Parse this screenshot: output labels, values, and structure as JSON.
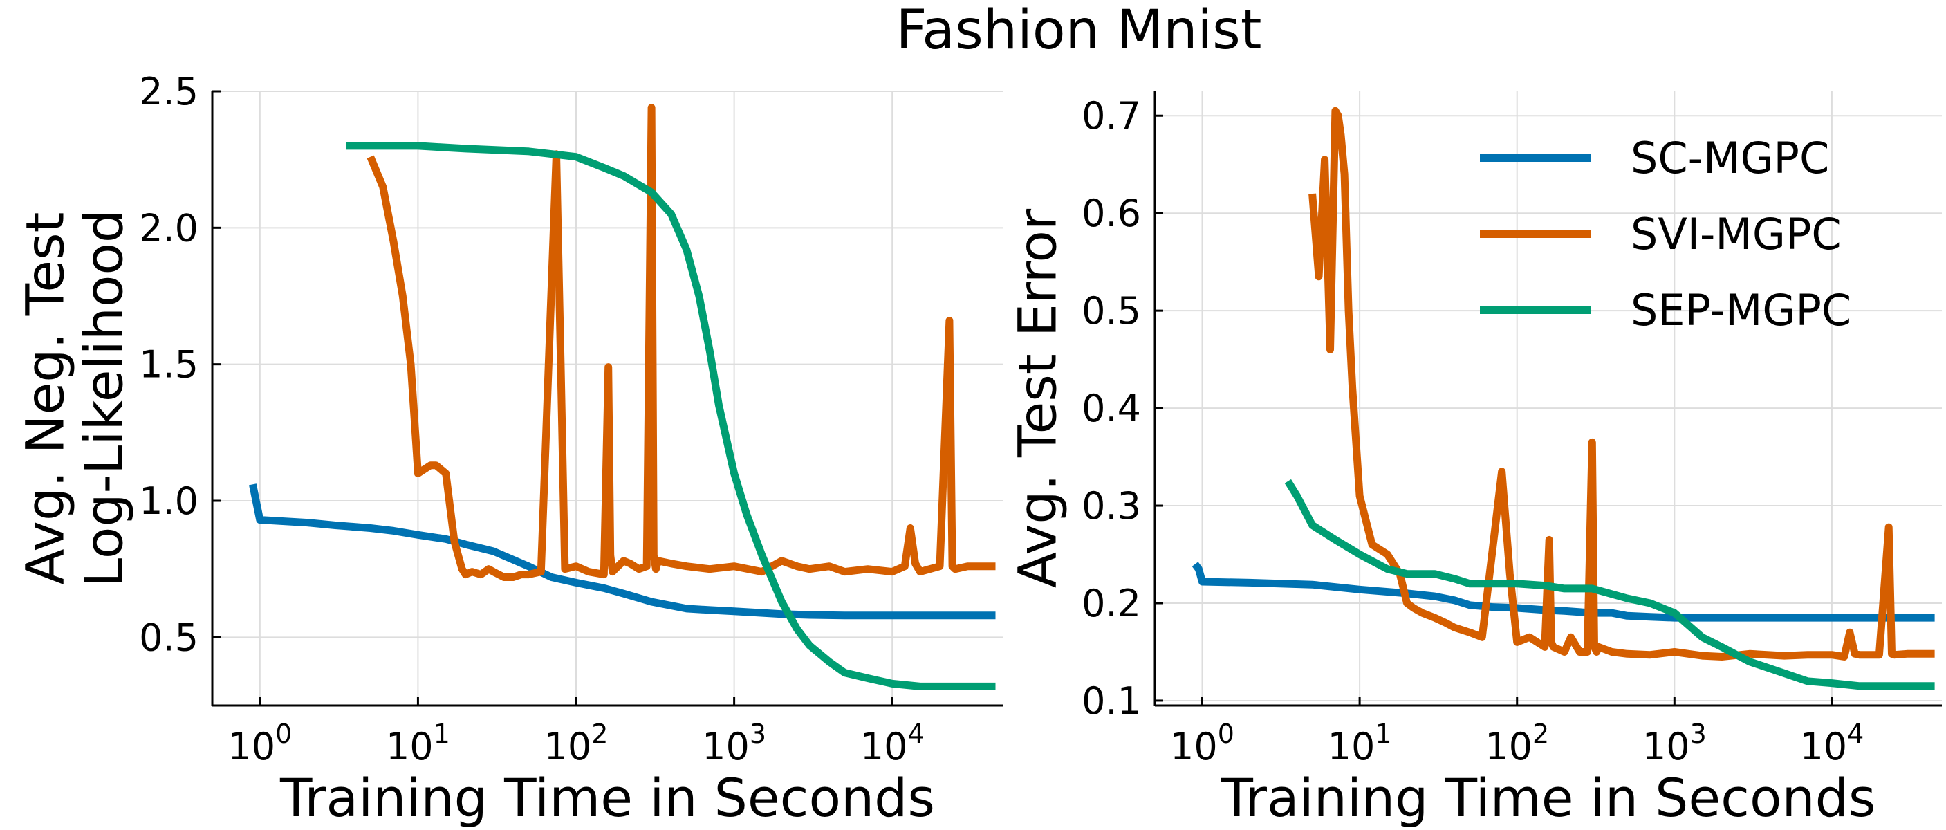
{
  "figure": {
    "title": "Fashion Mnist"
  },
  "chart_data": [
    {
      "type": "line",
      "xlabel": "Training Time in Seconds",
      "ylabel": [
        "Avg. Neg. Test",
        "Log-Likelihood"
      ],
      "xscale": "log",
      "xlim": [
        0.5,
        50000
      ],
      "ylim": [
        0.25,
        2.5
      ],
      "xticks": [
        {
          "value": 1,
          "base": "10",
          "exp": "0"
        },
        {
          "value": 10,
          "base": "10",
          "exp": "1"
        },
        {
          "value": 100,
          "base": "10",
          "exp": "2"
        },
        {
          "value": 1000,
          "base": "10",
          "exp": "3"
        },
        {
          "value": 10000,
          "base": "10",
          "exp": "4"
        }
      ],
      "yticks": [
        {
          "value": 0.5,
          "label": "0.5"
        },
        {
          "value": 1.0,
          "label": "1.0"
        },
        {
          "value": 1.5,
          "label": "1.5"
        },
        {
          "value": 2.0,
          "label": "2.0"
        },
        {
          "value": 2.5,
          "label": "2.5"
        }
      ],
      "grid": true,
      "series": [
        {
          "name": "SC-MGPC",
          "color": "#0072b2",
          "x": [
            0.9,
            1.0,
            2,
            3,
            5,
            7,
            10,
            15,
            20,
            30,
            50,
            70,
            100,
            150,
            200,
            300,
            500,
            700,
            1000,
            2000,
            3000,
            5000,
            10000,
            45000
          ],
          "y": [
            1.06,
            0.93,
            0.92,
            0.91,
            0.9,
            0.89,
            0.875,
            0.86,
            0.84,
            0.815,
            0.76,
            0.72,
            0.7,
            0.68,
            0.66,
            0.63,
            0.605,
            0.6,
            0.595,
            0.585,
            0.582,
            0.58,
            0.58,
            0.58
          ]
        },
        {
          "name": "SVI-MGPC",
          "color": "#d55e00",
          "x": [
            5,
            6,
            7,
            8,
            9,
            9.5,
            10,
            12,
            13,
            15,
            17,
            19,
            20,
            22,
            25,
            28,
            30,
            35,
            40,
            45,
            50,
            60,
            75,
            80,
            85,
            100,
            120,
            150,
            160,
            165,
            170,
            200,
            220,
            250,
            280,
            300,
            310,
            320,
            330,
            400,
            500,
            700,
            1000,
            1500,
            2000,
            2500,
            3000,
            4000,
            5000,
            7000,
            10000,
            12000,
            13000,
            14000,
            15000,
            20000,
            23000,
            24000,
            25000,
            30000,
            45000
          ],
          "y": [
            2.26,
            2.15,
            1.95,
            1.75,
            1.5,
            1.3,
            1.1,
            1.13,
            1.13,
            1.1,
            0.85,
            0.75,
            0.73,
            0.74,
            0.73,
            0.75,
            0.74,
            0.72,
            0.72,
            0.73,
            0.73,
            0.74,
            2.27,
            1.5,
            0.75,
            0.76,
            0.74,
            0.73,
            1.49,
            0.8,
            0.74,
            0.78,
            0.77,
            0.75,
            0.76,
            2.44,
            0.8,
            0.75,
            0.78,
            0.77,
            0.76,
            0.75,
            0.76,
            0.74,
            0.78,
            0.76,
            0.75,
            0.76,
            0.74,
            0.75,
            0.74,
            0.76,
            0.9,
            0.77,
            0.74,
            0.76,
            1.66,
            0.76,
            0.75,
            0.76,
            0.76
          ]
        },
        {
          "name": "SEP-MGPC",
          "color": "#009e73",
          "x": [
            3.5,
            5,
            10,
            20,
            50,
            100,
            150,
            200,
            300,
            400,
            500,
            600,
            700,
            800,
            1000,
            1200,
            1500,
            2000,
            2500,
            3000,
            4000,
            5000,
            7000,
            10000,
            15000,
            20000,
            30000,
            45000
          ],
          "y": [
            2.3,
            2.3,
            2.3,
            2.29,
            2.28,
            2.26,
            2.22,
            2.19,
            2.13,
            2.05,
            1.92,
            1.75,
            1.55,
            1.35,
            1.1,
            0.95,
            0.8,
            0.63,
            0.53,
            0.47,
            0.41,
            0.37,
            0.35,
            0.33,
            0.32,
            0.32,
            0.32,
            0.32
          ]
        }
      ]
    },
    {
      "type": "line",
      "xlabel": "Training Time in Seconds",
      "ylabel": [
        "Avg. Test Error"
      ],
      "xscale": "log",
      "xlim": [
        0.5,
        50000
      ],
      "ylim": [
        0.095,
        0.725
      ],
      "xticks": [
        {
          "value": 1,
          "base": "10",
          "exp": "0"
        },
        {
          "value": 10,
          "base": "10",
          "exp": "1"
        },
        {
          "value": 100,
          "base": "10",
          "exp": "2"
        },
        {
          "value": 1000,
          "base": "10",
          "exp": "3"
        },
        {
          "value": 10000,
          "base": "10",
          "exp": "4"
        }
      ],
      "yticks": [
        {
          "value": 0.1,
          "label": "0.1"
        },
        {
          "value": 0.2,
          "label": "0.2"
        },
        {
          "value": 0.3,
          "label": "0.3"
        },
        {
          "value": 0.4,
          "label": "0.4"
        },
        {
          "value": 0.5,
          "label": "0.5"
        },
        {
          "value": 0.6,
          "label": "0.6"
        },
        {
          "value": 0.7,
          "label": "0.7"
        }
      ],
      "grid": true,
      "legend": {
        "placement": "top-right"
      },
      "series": [
        {
          "name": "SC-MGPC",
          "color": "#0072b2",
          "x": [
            0.9,
            0.95,
            1.0,
            2,
            5,
            10,
            20,
            30,
            40,
            50,
            70,
            100,
            150,
            200,
            300,
            400,
            500,
            700,
            1000,
            2000,
            5000,
            10000,
            45000
          ],
          "y": [
            0.24,
            0.235,
            0.222,
            0.221,
            0.219,
            0.214,
            0.21,
            0.207,
            0.203,
            0.198,
            0.196,
            0.195,
            0.193,
            0.192,
            0.19,
            0.19,
            0.187,
            0.186,
            0.185,
            0.185,
            0.185,
            0.185,
            0.185
          ]
        },
        {
          "name": "SVI-MGPC",
          "color": "#d55e00",
          "x": [
            5,
            5.5,
            6,
            6.5,
            7,
            7.3,
            7.6,
            8,
            8.5,
            9,
            10,
            12,
            15,
            18,
            20,
            22,
            25,
            30,
            35,
            40,
            50,
            60,
            80,
            90,
            100,
            120,
            150,
            160,
            165,
            170,
            200,
            220,
            250,
            280,
            300,
            310,
            320,
            330,
            400,
            500,
            700,
            1000,
            1500,
            2000,
            3000,
            5000,
            7000,
            10000,
            12000,
            13000,
            14000,
            15000,
            20000,
            23000,
            24000,
            25000,
            30000,
            45000
          ],
          "y": [
            0.62,
            0.535,
            0.655,
            0.46,
            0.705,
            0.7,
            0.68,
            0.64,
            0.5,
            0.42,
            0.31,
            0.26,
            0.25,
            0.23,
            0.2,
            0.195,
            0.19,
            0.185,
            0.18,
            0.175,
            0.17,
            0.165,
            0.335,
            0.23,
            0.16,
            0.165,
            0.155,
            0.265,
            0.16,
            0.155,
            0.15,
            0.165,
            0.15,
            0.15,
            0.365,
            0.155,
            0.15,
            0.155,
            0.15,
            0.148,
            0.147,
            0.15,
            0.146,
            0.145,
            0.148,
            0.146,
            0.147,
            0.147,
            0.145,
            0.17,
            0.148,
            0.147,
            0.147,
            0.278,
            0.148,
            0.147,
            0.148,
            0.148
          ]
        },
        {
          "name": "SEP-MGPC",
          "color": "#009e73",
          "x": [
            3.5,
            4,
            5,
            7,
            10,
            15,
            20,
            30,
            40,
            50,
            70,
            100,
            150,
            200,
            300,
            500,
            700,
            1000,
            1500,
            2000,
            3000,
            5000,
            7000,
            10000,
            15000,
            20000,
            30000,
            45000
          ],
          "y": [
            0.325,
            0.31,
            0.28,
            0.265,
            0.25,
            0.235,
            0.23,
            0.23,
            0.225,
            0.22,
            0.22,
            0.22,
            0.218,
            0.215,
            0.215,
            0.205,
            0.2,
            0.19,
            0.165,
            0.155,
            0.14,
            0.128,
            0.12,
            0.118,
            0.115,
            0.115,
            0.115,
            0.115
          ]
        }
      ]
    }
  ]
}
